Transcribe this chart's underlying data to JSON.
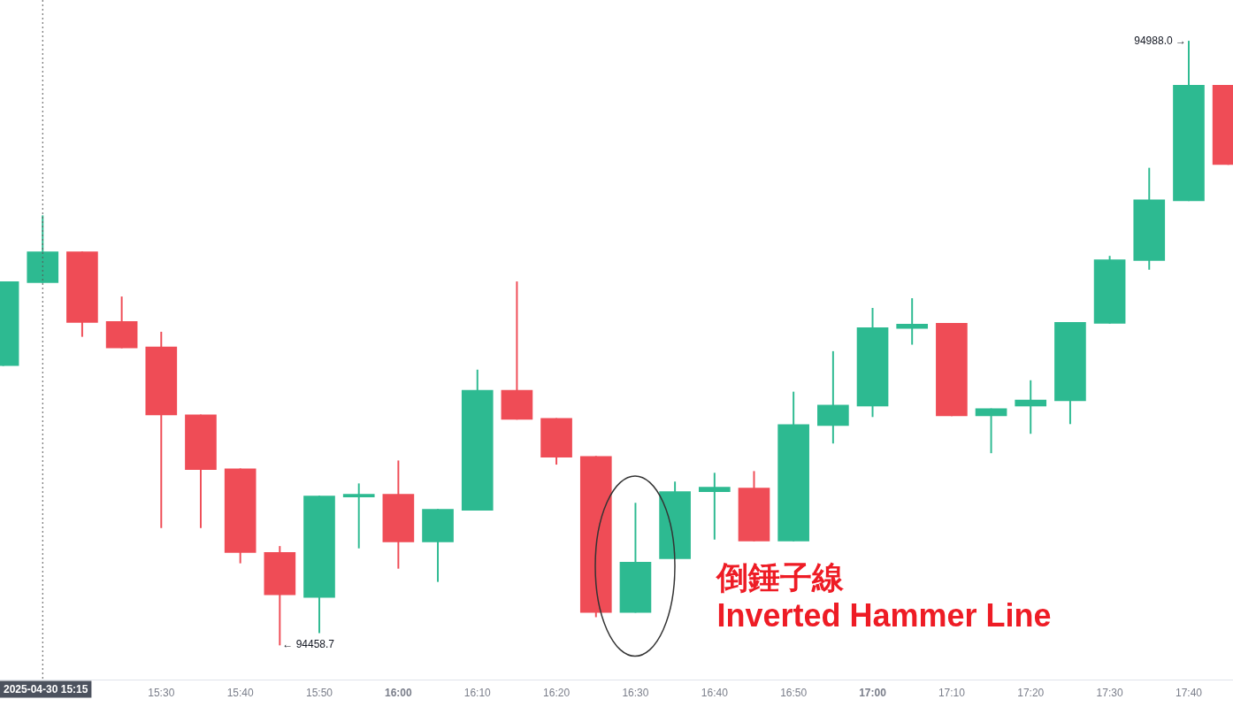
{
  "chart_data": {
    "type": "candlestick",
    "x": [
      15.1667,
      15.25,
      15.3333,
      15.4167,
      15.5,
      15.5833,
      15.6667,
      15.75,
      15.8333,
      15.9167,
      16,
      16.0833,
      16.1667,
      16.25,
      16.3333,
      16.4167,
      16.5,
      16.5833,
      16.6667,
      16.75,
      16.8333,
      16.9167,
      17,
      17.0833,
      17.1667,
      17.25,
      17.3333,
      17.4167,
      17.5,
      17.5833,
      17.6667,
      17.75
    ],
    "ohlc": [
      [
        94703.6,
        94777.1,
        94703.6,
        94777.1
      ],
      [
        94776.3,
        94835.0,
        94776.3,
        94803.3
      ],
      [
        94803.3,
        94803.3,
        94729.1,
        94741.5
      ],
      [
        94742.3,
        94763.9,
        94719.1,
        94719.1
      ],
      [
        94719.9,
        94733.0,
        94561.5,
        94660.4
      ],
      [
        94660.4,
        94660.4,
        94561.5,
        94612.5
      ],
      [
        94613.2,
        94613.2,
        94530.6,
        94539.8
      ],
      [
        94539.8,
        94545.2,
        94458.7,
        94502.7
      ],
      [
        94500.4,
        94589.3,
        94469.5,
        94589.3
      ],
      [
        94588.5,
        94600.1,
        94543.7,
        94590.8
      ],
      [
        94590.8,
        94620.2,
        94525.9,
        94549.1
      ],
      [
        94549.1,
        94577.7,
        94514.3,
        94577.7
      ],
      [
        94576.9,
        94699.8,
        94576.9,
        94682.0
      ],
      [
        94682.0,
        94777.1,
        94656.5,
        94656.5
      ],
      [
        94657.3,
        94657.3,
        94617.1,
        94623.3
      ],
      [
        94624.1,
        94624.1,
        94483.4,
        94487.3
      ],
      [
        94487.3,
        94583.1,
        94487.3,
        94531.3
      ],
      [
        94534.4,
        94601.7,
        94534.4,
        94593.1
      ],
      [
        94593.1,
        94609.4,
        94551.4,
        94597.0
      ],
      [
        94596.2,
        94610.9,
        94549.9,
        94549.9
      ],
      [
        94549.9,
        94680.5,
        94549.9,
        94651.9
      ],
      [
        94651.1,
        94716.0,
        94635.6,
        94668.9
      ],
      [
        94668.1,
        94753.9,
        94658.8,
        94736.9
      ],
      [
        94736.1,
        94762.4,
        94722.2,
        94740.0
      ],
      [
        94740.7,
        94740.7,
        94659.6,
        94659.6
      ],
      [
        94659.6,
        94665.8,
        94627.1,
        94665.8
      ],
      [
        94668.1,
        94690.5,
        94644.1,
        94673.5
      ],
      [
        94672.7,
        94741.5,
        94652.6,
        94741.5
      ],
      [
        94740.7,
        94799.5,
        94740.7,
        94796.4
      ],
      [
        94795.6,
        94876.7,
        94787.9,
        94848.9
      ],
      [
        94848.1,
        94988.0,
        94848.1,
        94949.3
      ],
      [
        94949.3,
        94949.3,
        94879.8,
        94879.8
      ]
    ],
    "colors": [
      "#2dba91",
      "#2dba91",
      "#ef4c56",
      "#ef4c56",
      "#ef4c56",
      "#ef4c56",
      "#ef4c56",
      "#ef4c56",
      "#2dba91",
      "#2dba91",
      "#ef4c56",
      "#2dba91",
      "#2dba91",
      "#ef4c56",
      "#ef4c56",
      "#ef4c56",
      "#2dba91",
      "#2dba91",
      "#2dba91",
      "#ef4c56",
      "#2dba91",
      "#2dba91",
      "#2dba91",
      "#2dba91",
      "#ef4c56",
      "#2dba91",
      "#2dba91",
      "#2dba91",
      "#2dba91",
      "#2dba91",
      "#2dba91",
      "#ef4c56"
    ],
    "xlim": [
      15.16,
      17.76
    ],
    "xticks": [
      {
        "value": 15.5,
        "label": "15:30"
      },
      {
        "value": 15.6667,
        "label": "15:40"
      },
      {
        "value": 15.8333,
        "label": "15:50"
      },
      {
        "value": 16,
        "label": "16:00"
      },
      {
        "value": 16.1667,
        "label": "16:10"
      },
      {
        "value": 16.3333,
        "label": "16:20"
      },
      {
        "value": 16.5,
        "label": "16:30"
      },
      {
        "value": 16.6667,
        "label": "16:40"
      },
      {
        "value": 16.8333,
        "label": "16:50"
      },
      {
        "value": 17,
        "label": "17:00"
      },
      {
        "value": 17.1667,
        "label": "17:10"
      },
      {
        "value": 17.3333,
        "label": "17:20"
      },
      {
        "value": 17.5,
        "label": "17:30"
      },
      {
        "value": 17.6667,
        "label": "17:40"
      }
    ],
    "ylim": [
      94428,
      95024
    ],
    "tick_labels": "x",
    "ref_lines": [
      {
        "axis": "x",
        "value": 15.25,
        "label": "2025-04-30 15:15",
        "color": "#555555",
        "line_style": "dotted"
      }
    ],
    "annotations": [
      {
        "text": "94988.0 →",
        "x": 17.6667,
        "y": 94988.0
      },
      {
        "text": "← 94458.7",
        "x": 15.75,
        "y": 94458.7
      },
      {
        "text": "倒錘子線",
        "x": 16.5,
        "y": 94531.3
      },
      {
        "text": "Inverted Hammer Line",
        "x": 16.5,
        "y": 94487.3
      }
    ]
  }
}
